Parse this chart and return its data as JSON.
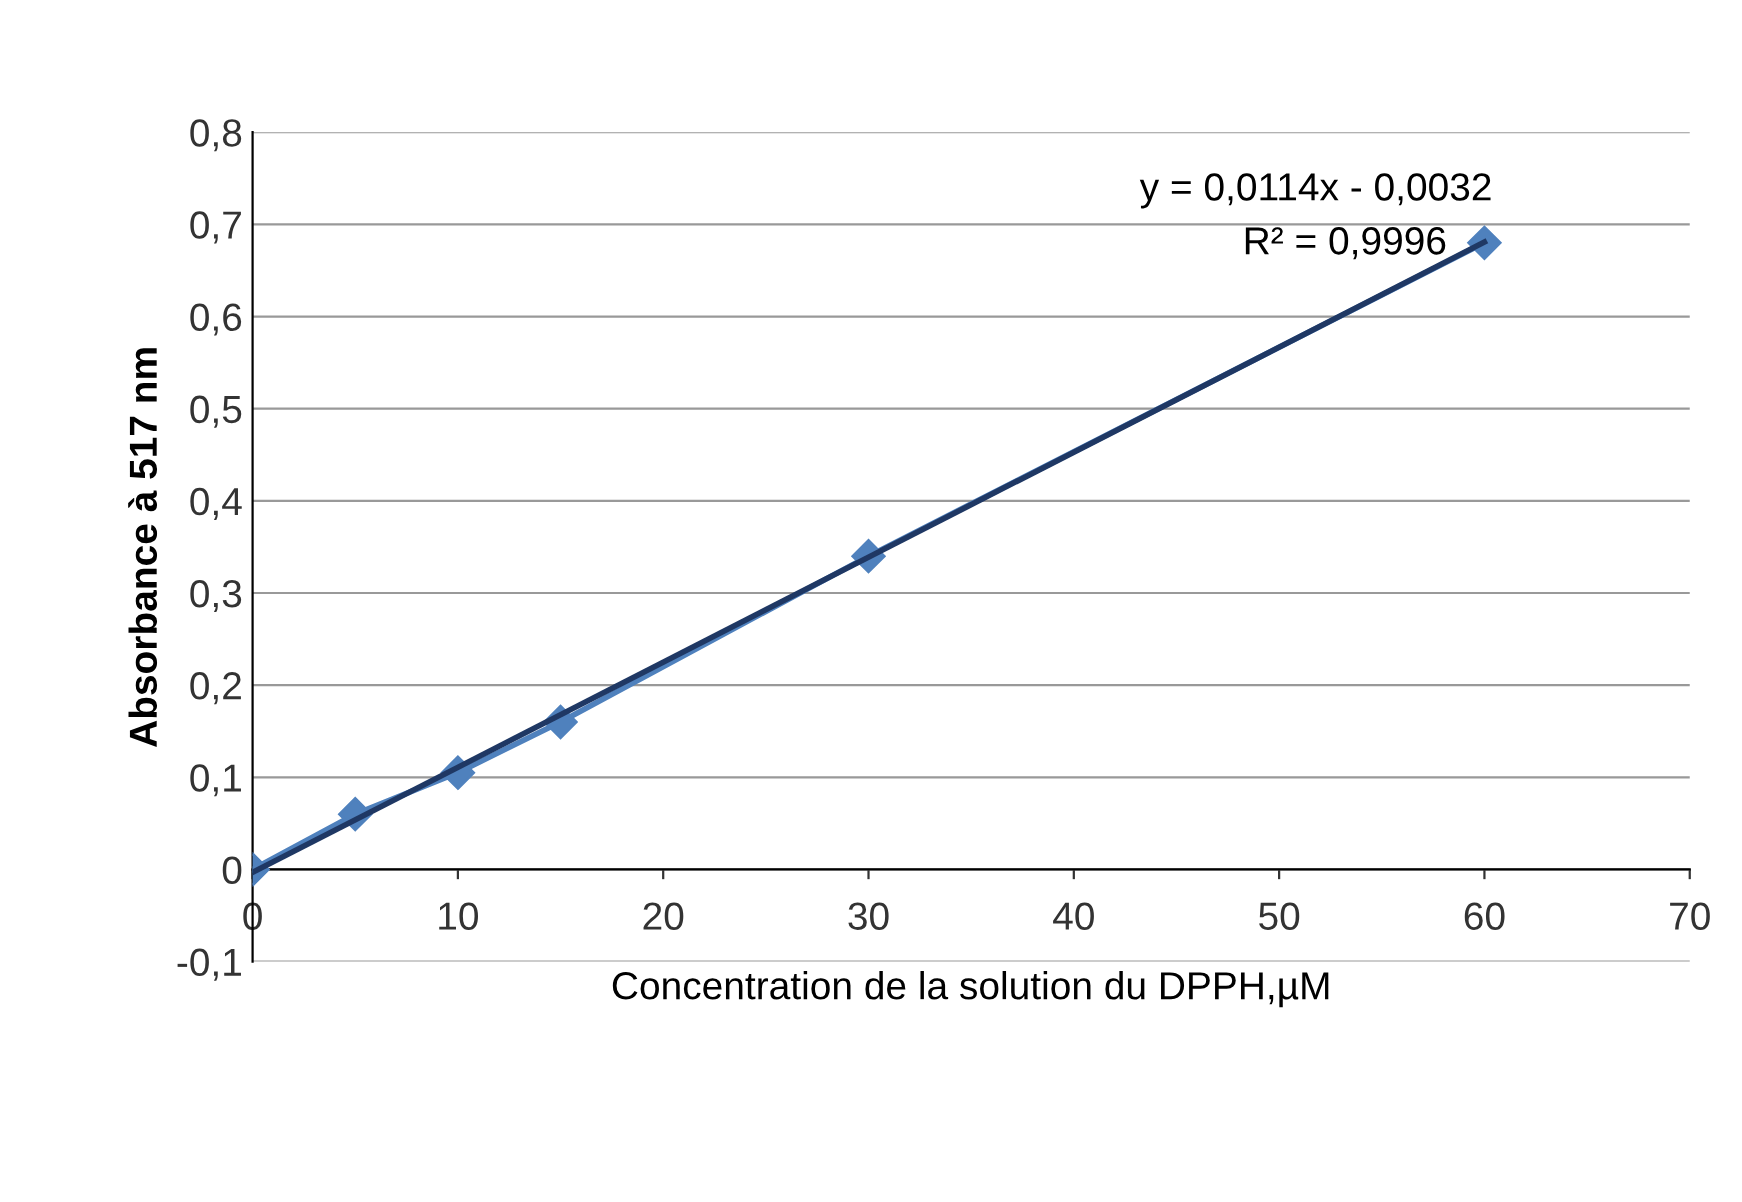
{
  "chart_data": {
    "type": "line",
    "xlabel": "Concentration de la solution du DPPH,µM",
    "ylabel": "Absorbance à 517 nm",
    "x": [
      0,
      5,
      10,
      15,
      30,
      60
    ],
    "series": [
      {
        "color": "#4f81bd",
        "values": [
          0,
          0.06,
          0.105,
          0.16,
          0.34,
          0.68
        ],
        "marker": "diamond"
      },
      {
        "type": "line",
        "color": "#1f3864",
        "x": [
          0,
          60
        ],
        "values": [
          -0.0032,
          0.6808
        ],
        "marker": "none"
      }
    ],
    "xlim": [
      0,
      70
    ],
    "xticks": [
      0,
      10,
      20,
      30,
      40,
      50,
      60,
      70
    ],
    "ylim": [
      -0.1,
      0.8
    ],
    "yticks": [
      {
        "value": -0.1,
        "label": "-0,1"
      },
      0,
      {
        "value": 0.1,
        "label": "0,1"
      },
      {
        "value": 0.2,
        "label": "0,2"
      },
      {
        "value": 0.3,
        "label": "0,3"
      },
      {
        "value": 0.4,
        "label": "0,4"
      },
      {
        "value": 0.5,
        "label": "0,5"
      },
      {
        "value": 0.6,
        "label": "0,6"
      },
      {
        "value": 0.7,
        "label": "0,7"
      },
      {
        "value": 0.8,
        "label": "0,8"
      }
    ],
    "grid": "y",
    "legend": false,
    "annotations": [
      "y = 0,0114x - 0,0032",
      "R² = 0,9996"
    ]
  }
}
